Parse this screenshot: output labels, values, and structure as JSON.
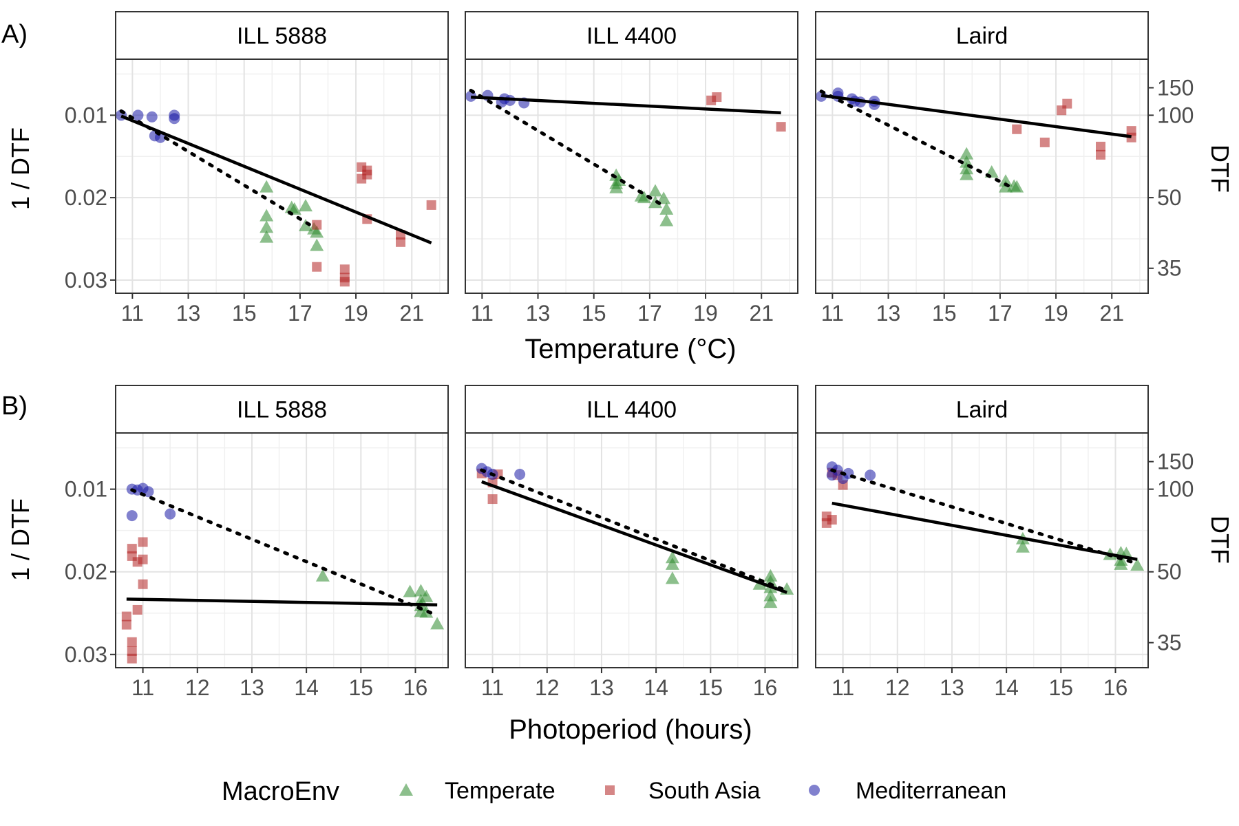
{
  "panel_labels": [
    "A)",
    "B)"
  ],
  "legend": {
    "title": "MacroEnv",
    "items": [
      {
        "label": "Temperate",
        "color": "#2e8b2e",
        "shape": "triangle"
      },
      {
        "label": "South Asia",
        "color": "#b22222",
        "shape": "square"
      },
      {
        "label": "Mediterranean",
        "color": "#1a1aa6",
        "shape": "circle"
      }
    ]
  },
  "colors": {
    "Temperate": "#2e8b2e",
    "South Asia": "#b22222",
    "Mediterranean": "#1a1aa6"
  },
  "chart_data": [
    {
      "type": "scatter",
      "row": "A)",
      "xlabel": "Temperature (°C)",
      "ylabel_left": "1 / DTF",
      "ylabel_right": "DTF",
      "x_ticks": [
        11,
        13,
        15,
        17,
        19,
        21
      ],
      "xlim": [
        10.4,
        22.3
      ],
      "y_ticks_left": [
        0.01,
        0.02,
        0.03
      ],
      "y_ticks_right": [
        150,
        100,
        50,
        35
      ],
      "ylim": [
        0.0032,
        0.0316
      ],
      "grid": true,
      "facets": [
        {
          "strip": "ILL 5888",
          "points": {
            "Mediterranean": [
              [
                10.6,
                0.01
              ],
              [
                11.2,
                0.01
              ],
              [
                11.7,
                0.0102
              ],
              [
                11.8,
                0.0125
              ],
              [
                12.0,
                0.0127
              ],
              [
                12.5,
                0.01
              ],
              [
                12.5,
                0.0104
              ]
            ],
            "Temperate": [
              [
                15.8,
                0.0187
              ],
              [
                15.8,
                0.0222
              ],
              [
                15.8,
                0.0236
              ],
              [
                15.8,
                0.0248
              ],
              [
                16.7,
                0.0212
              ],
              [
                16.8,
                0.0214
              ],
              [
                17.2,
                0.021
              ],
              [
                17.2,
                0.0234
              ],
              [
                17.5,
                0.0238
              ],
              [
                17.6,
                0.0242
              ],
              [
                17.6,
                0.0258
              ]
            ],
            "South Asia": [
              [
                17.6,
                0.0233
              ],
              [
                17.6,
                0.0284
              ],
              [
                18.6,
                0.0287
              ],
              [
                18.6,
                0.0297
              ],
              [
                18.6,
                0.0302
              ],
              [
                19.2,
                0.0163
              ],
              [
                19.2,
                0.0177
              ],
              [
                19.4,
                0.0167
              ],
              [
                19.4,
                0.0172
              ],
              [
                19.4,
                0.0226
              ],
              [
                20.6,
                0.0245
              ],
              [
                20.6,
                0.0254
              ],
              [
                21.7,
                0.0209
              ]
            ]
          },
          "solid_line": [
            [
              10.6,
              0.0101
            ],
            [
              21.7,
              0.0255
            ]
          ],
          "dotted_line": [
            [
              10.6,
              0.0095
            ],
            [
              17.5,
              0.0236
            ]
          ]
        },
        {
          "strip": "ILL 4400",
          "points": {
            "Mediterranean": [
              [
                10.6,
                0.0077
              ],
              [
                11.2,
                0.0076
              ],
              [
                11.7,
                0.0084
              ],
              [
                11.8,
                0.008
              ],
              [
                12.0,
                0.0082
              ],
              [
                12.5,
                0.0085
              ]
            ],
            "South Asia": [
              [
                19.2,
                0.0082
              ],
              [
                19.4,
                0.0078
              ],
              [
                21.7,
                0.0114
              ]
            ],
            "Temperate": [
              [
                15.8,
                0.0173
              ],
              [
                15.8,
                0.0183
              ],
              [
                15.8,
                0.0188
              ],
              [
                15.9,
                0.0179
              ],
              [
                16.7,
                0.0198
              ],
              [
                16.8,
                0.02
              ],
              [
                17.2,
                0.0192
              ],
              [
                17.2,
                0.0206
              ],
              [
                17.5,
                0.0201
              ],
              [
                17.6,
                0.0214
              ],
              [
                17.6,
                0.0228
              ]
            ]
          },
          "solid_line": [
            [
              10.6,
              0.0078
            ],
            [
              21.7,
              0.0097
            ]
          ],
          "dotted_line": [
            [
              10.6,
              0.007
            ],
            [
              17.5,
              0.021
            ]
          ]
        },
        {
          "strip": "Laird",
          "points": {
            "Mediterranean": [
              [
                10.6,
                0.0077
              ],
              [
                11.2,
                0.0073
              ],
              [
                11.2,
                0.0077
              ],
              [
                11.7,
                0.008
              ],
              [
                11.8,
                0.0083
              ],
              [
                12.0,
                0.0084
              ],
              [
                12.5,
                0.0083
              ],
              [
                12.5,
                0.0087
              ]
            ],
            "South Asia": [
              [
                17.6,
                0.0117
              ],
              [
                18.6,
                0.0133
              ],
              [
                19.2,
                0.0094
              ],
              [
                19.4,
                0.0086
              ],
              [
                20.6,
                0.0138
              ],
              [
                20.6,
                0.0148
              ],
              [
                21.7,
                0.0119
              ],
              [
                21.7,
                0.0127
              ]
            ],
            "Temperate": [
              [
                15.8,
                0.0147
              ],
              [
                15.8,
                0.0157
              ],
              [
                15.8,
                0.0165
              ],
              [
                15.8,
                0.0172
              ],
              [
                16.7,
                0.0169
              ],
              [
                17.2,
                0.018
              ],
              [
                17.2,
                0.0187
              ],
              [
                17.5,
                0.0186
              ],
              [
                17.6,
                0.0187
              ]
            ]
          },
          "solid_line": [
            [
              10.6,
              0.0076
            ],
            [
              21.7,
              0.0126
            ]
          ],
          "dotted_line": [
            [
              10.6,
              0.0071
            ],
            [
              17.5,
              0.0189
            ]
          ]
        }
      ]
    },
    {
      "type": "scatter",
      "row": "B)",
      "xlabel": "Photoperiod (hours)",
      "ylabel_left": "1 / DTF",
      "ylabel_right": "DTF",
      "x_ticks": [
        11,
        12,
        13,
        14,
        15,
        16
      ],
      "xlim": [
        10.5,
        16.6
      ],
      "y_ticks_left": [
        0.01,
        0.02,
        0.03
      ],
      "y_ticks_right": [
        150,
        100,
        50,
        35
      ],
      "ylim": [
        0.0032,
        0.0316
      ],
      "grid": true,
      "facets": [
        {
          "strip": "ILL 5888",
          "points": {
            "Mediterranean": [
              [
                10.8,
                0.01
              ],
              [
                10.9,
                0.0101
              ],
              [
                11.0,
                0.0099
              ],
              [
                11.1,
                0.0103
              ],
              [
                10.8,
                0.0132
              ],
              [
                11.5,
                0.013
              ]
            ],
            "South Asia": [
              [
                10.8,
                0.0172
              ],
              [
                10.8,
                0.0181
              ],
              [
                10.9,
                0.0188
              ],
              [
                11.0,
                0.0164
              ],
              [
                11.0,
                0.0185
              ],
              [
                11.0,
                0.0215
              ],
              [
                10.9,
                0.0246
              ],
              [
                10.7,
                0.0254
              ],
              [
                10.7,
                0.0264
              ],
              [
                10.8,
                0.0285
              ],
              [
                10.8,
                0.0296
              ],
              [
                10.8,
                0.0305
              ]
            ],
            "Temperate": [
              [
                14.3,
                0.0205
              ],
              [
                15.9,
                0.0224
              ],
              [
                16.1,
                0.0223
              ],
              [
                16.1,
                0.0235
              ],
              [
                16.1,
                0.0241
              ],
              [
                16.1,
                0.0248
              ],
              [
                16.2,
                0.023
              ],
              [
                16.2,
                0.0249
              ],
              [
                16.4,
                0.0263
              ]
            ]
          },
          "solid_line": [
            [
              10.7,
              0.0233
            ],
            [
              16.4,
              0.024
            ]
          ],
          "dotted_line": [
            [
              10.8,
              0.0101
            ],
            [
              16.3,
              0.025
            ]
          ]
        },
        {
          "strip": "ILL 4400",
          "points": {
            "Mediterranean": [
              [
                10.8,
                0.0075
              ],
              [
                10.9,
                0.0079
              ],
              [
                11.0,
                0.0082
              ],
              [
                11.5,
                0.0082
              ]
            ],
            "South Asia": [
              [
                10.8,
                0.0081
              ],
              [
                11.0,
                0.0092
              ],
              [
                11.0,
                0.0112
              ],
              [
                11.1,
                0.0082
              ]
            ],
            "Temperate": [
              [
                14.3,
                0.0183
              ],
              [
                14.3,
                0.0191
              ],
              [
                14.3,
                0.0208
              ],
              [
                15.9,
                0.0215
              ],
              [
                16.1,
                0.0205
              ],
              [
                16.1,
                0.0212
              ],
              [
                16.1,
                0.0219
              ],
              [
                16.1,
                0.0229
              ],
              [
                16.1,
                0.0237
              ],
              [
                16.4,
                0.0221
              ]
            ]
          },
          "solid_line": [
            [
              10.8,
              0.0091
            ],
            [
              16.4,
              0.0225
            ]
          ],
          "dotted_line": [
            [
              10.8,
              0.0077
            ],
            [
              16.4,
              0.0223
            ]
          ]
        },
        {
          "strip": "Laird",
          "points": {
            "Mediterranean": [
              [
                10.8,
                0.0073
              ],
              [
                10.8,
                0.0083
              ],
              [
                10.9,
                0.0077
              ],
              [
                11.0,
                0.0087
              ],
              [
                11.1,
                0.0081
              ],
              [
                11.5,
                0.0083
              ]
            ],
            "South Asia": [
              [
                10.7,
                0.0133
              ],
              [
                10.7,
                0.0141
              ],
              [
                10.8,
                0.0137
              ],
              [
                10.8,
                0.008
              ],
              [
                10.9,
                0.0083
              ],
              [
                11.0,
                0.0095
              ]
            ],
            "Temperate": [
              [
                14.3,
                0.016
              ],
              [
                14.3,
                0.017
              ],
              [
                15.9,
                0.0179
              ],
              [
                16.1,
                0.0177
              ],
              [
                16.1,
                0.0186
              ],
              [
                16.1,
                0.0191
              ],
              [
                16.2,
                0.0178
              ],
              [
                16.4,
                0.0192
              ]
            ]
          },
          "solid_line": [
            [
              10.8,
              0.0117
            ],
            [
              16.4,
              0.0185
            ]
          ],
          "dotted_line": [
            [
              10.8,
              0.0077
            ],
            [
              16.4,
              0.019
            ]
          ]
        }
      ]
    }
  ]
}
